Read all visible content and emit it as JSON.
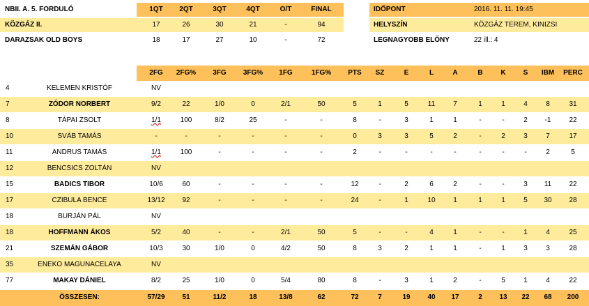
{
  "game": {
    "title": "NBII. A. 5. FORDULÓ",
    "quarter_headers": [
      "1QT",
      "2QT",
      "3QT",
      "4QT",
      "O/T",
      "FINAL"
    ],
    "teams": [
      {
        "name": "KÖZGÁZ II.",
        "scores": [
          "17",
          "26",
          "30",
          "21",
          "-",
          "94"
        ]
      },
      {
        "name": "DARAZSAK OLD BOYS",
        "scores": [
          "18",
          "17",
          "27",
          "10",
          "-",
          "72"
        ]
      }
    ],
    "info": [
      {
        "label": "IDŐPONT",
        "value": "2016. 11. 11. 19:45"
      },
      {
        "label": "HELYSZÍN",
        "value": "KÖZGÁZ TEREM,  KINIZSI"
      },
      {
        "label": "LEGNAGYOBB ELŐNY",
        "value": "22 ill.: 4"
      }
    ]
  },
  "stats": {
    "columns": [
      "2FG",
      "2FG%",
      "3FG",
      "3FG%",
      "1FG",
      "1FG%",
      "PTS",
      "SZ",
      "E",
      "L",
      "A",
      "B",
      "K",
      "S",
      "IBM",
      "PERC"
    ],
    "players": [
      {
        "number": "4",
        "name": "KELEMEN KRISTÓF",
        "bold": false,
        "stats": [
          "NV",
          "",
          "",
          "",
          "",
          "",
          "",
          "",
          "",
          "",
          "",
          "",
          "",
          "",
          "",
          ""
        ]
      },
      {
        "number": "7",
        "name": "ZÓDOR NORBERT",
        "bold": true,
        "stats": [
          "9/2",
          "22",
          "1/0",
          "0",
          "2/1",
          "50",
          "5",
          "1",
          "5",
          "11",
          "7",
          "1",
          "1",
          "4",
          "8",
          "31"
        ]
      },
      {
        "number": "8",
        "name": "TÁPAI ZSOLT",
        "bold": false,
        "stats": [
          "1/1",
          "100",
          "8/2",
          "25",
          "-",
          "-",
          "8",
          "-",
          "3",
          "1",
          "1",
          "-",
          "-",
          "2",
          "-1",
          "22"
        ]
      },
      {
        "number": "10",
        "name": "SVÁB TAMÁS",
        "bold": false,
        "stats": [
          "-",
          "-",
          "-",
          "-",
          "-",
          "-",
          "0",
          "3",
          "3",
          "5",
          "2",
          "-",
          "2",
          "3",
          "7",
          "17"
        ]
      },
      {
        "number": "11",
        "name": "ANDRUS TAMÁS",
        "bold": false,
        "stats": [
          "1/1",
          "100",
          "-",
          "-",
          "-",
          "-",
          "2",
          "-",
          "-",
          "-",
          "-",
          "-",
          "-",
          "-",
          "2",
          "5"
        ]
      },
      {
        "number": "12",
        "name": "BENCSICS ZOLTÁN",
        "bold": false,
        "stats": [
          "NV",
          "",
          "",
          "",
          "",
          "",
          "",
          "",
          "",
          "",
          "",
          "",
          "",
          "",
          "",
          ""
        ]
      },
      {
        "number": "15",
        "name": "BADICS TIBOR",
        "bold": true,
        "stats": [
          "10/6",
          "60",
          "-",
          "-",
          "-",
          "-",
          "12",
          "-",
          "2",
          "6",
          "2",
          "-",
          "-",
          "3",
          "11",
          "22"
        ]
      },
      {
        "number": "17",
        "name": "CZIBULA BENCE",
        "bold": false,
        "stats": [
          "13/12",
          "92",
          "-",
          "-",
          "-",
          "-",
          "24",
          "-",
          "1",
          "10",
          "1",
          "1",
          "1",
          "5",
          "30",
          "28"
        ]
      },
      {
        "number": "18",
        "name": "BURJÁN PÁL",
        "bold": false,
        "stats": [
          "NV",
          "",
          "",
          "",
          "",
          "",
          "",
          "",
          "",
          "",
          "",
          "",
          "",
          "",
          "",
          ""
        ]
      },
      {
        "number": "18",
        "name": "HOFFMANN ÁKOS",
        "bold": true,
        "stats": [
          "5/2",
          "40",
          "-",
          "-",
          "2/1",
          "50",
          "5",
          "-",
          "-",
          "4",
          "1",
          "-",
          "-",
          "1",
          "4",
          "25"
        ]
      },
      {
        "number": "21",
        "name": "SZEMÁN GÁBOR",
        "bold": true,
        "stats": [
          "10/3",
          "30",
          "1/0",
          "0",
          "4/2",
          "50",
          "8",
          "3",
          "2",
          "1",
          "1",
          "-",
          "1",
          "3",
          "3",
          "28"
        ]
      },
      {
        "number": "35",
        "name": "ENEKO MAGUNACELAYA",
        "bold": false,
        "stats": [
          "NV",
          "",
          "",
          "",
          "",
          "",
          "",
          "",
          "",
          "",
          "",
          "",
          "",
          "",
          "",
          ""
        ]
      },
      {
        "number": "77",
        "name": "MAKAY DÁNIEL",
        "bold": true,
        "stats": [
          "8/2",
          "25",
          "1/0",
          "0",
          "5/4",
          "80",
          "8",
          "-",
          "3",
          "1",
          "2",
          "-",
          "5",
          "1",
          "4",
          "22"
        ]
      }
    ],
    "totals": {
      "label": "ÖSSZESEN:",
      "stats": [
        "57/29",
        "51",
        "11/2",
        "18",
        "13/8",
        "62",
        "72",
        "7",
        "19",
        "40",
        "17",
        "2",
        "13",
        "22",
        "68",
        "200"
      ]
    }
  }
}
